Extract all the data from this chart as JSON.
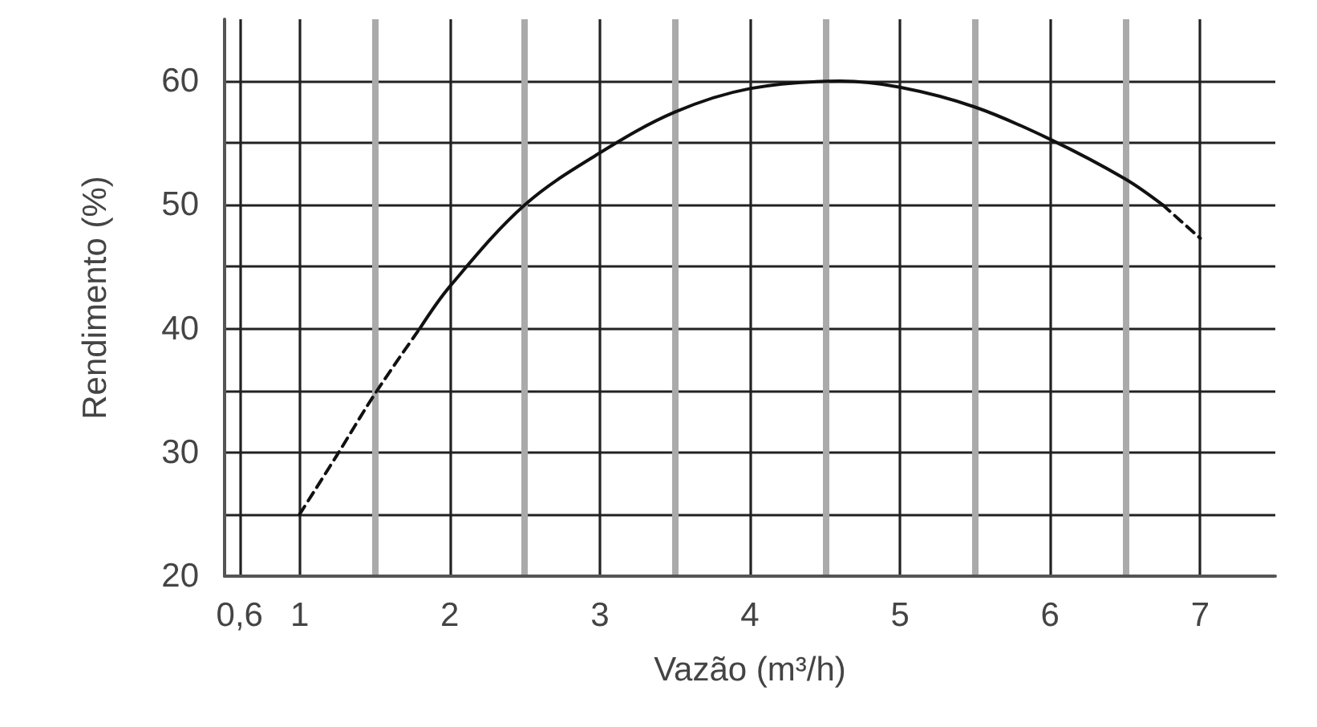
{
  "chart_data": {
    "type": "line",
    "xlabel": "Vazão (m³/h)",
    "ylabel": "Rendimento (%)",
    "xlim": [
      0.5,
      7.5
    ],
    "xticks": [
      {
        "value": 0.6,
        "label": "0,6"
      },
      1,
      {
        "value": 1.5,
        "label": null
      },
      2,
      {
        "value": 2.5,
        "label": null
      },
      3,
      {
        "value": 3.5,
        "label": null
      },
      4,
      {
        "value": 4.5,
        "label": null
      },
      5,
      {
        "value": 5.5,
        "label": null
      },
      6,
      {
        "value": 6.5,
        "label": null
      },
      7
    ],
    "ylim": [
      20,
      65
    ],
    "yticks": [
      20,
      {
        "value": 25,
        "label": null
      },
      30,
      {
        "value": 35,
        "label": null
      },
      40,
      {
        "value": 45,
        "label": null
      },
      50,
      {
        "value": 55,
        "label": null
      },
      60
    ],
    "grid": true,
    "marker": "none",
    "series": [
      {
        "color": "#111111",
        "line_style": "dashed",
        "x": [
          1,
          1.25,
          1.5,
          1.8
        ],
        "values": [
          25,
          29.8,
          34.7,
          40
        ]
      },
      {
        "color": "#111111",
        "line_style": "solid",
        "x": [
          1.8,
          2,
          2.5,
          3,
          3.5,
          4,
          4.6,
          5,
          5.5,
          6,
          6.5,
          6.75
        ],
        "values": [
          40,
          43.4,
          50,
          54.2,
          57.5,
          59.4,
          60,
          59.5,
          57.9,
          55.3,
          52.1,
          50
        ]
      },
      {
        "color": "#111111",
        "line_style": "dashed",
        "x": [
          6.75,
          7
        ],
        "values": [
          50,
          47.3
        ]
      }
    ]
  }
}
